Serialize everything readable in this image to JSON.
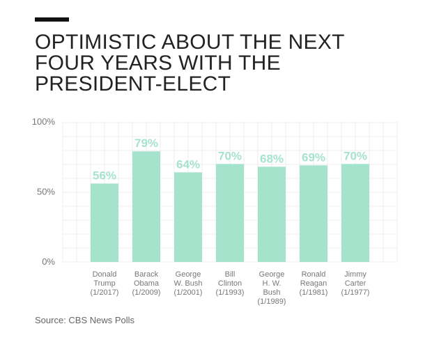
{
  "title_lines": [
    "OPTIMISTIC ABOUT THE NEXT",
    "FOUR YEARS WITH THE",
    "PRESIDENT-ELECT"
  ],
  "source": "Source: CBS News Polls",
  "colors": {
    "bar": "#a6e3cd",
    "label": "#a6e3cd",
    "grid": "#eeeeee",
    "text": "#777777"
  },
  "chart_data": {
    "type": "bar",
    "title": "OPTIMISTIC ABOUT THE NEXT FOUR YEARS WITH THE PRESIDENT-ELECT",
    "categories": [
      [
        "Donald",
        "Trump",
        "(1/2017)"
      ],
      [
        "Barack",
        "Obama",
        "(1/2009)"
      ],
      [
        "George",
        "W. Bush",
        "(1/2001)"
      ],
      [
        "Bill",
        "Clinton",
        "(1/1993)"
      ],
      [
        "George",
        "H. W.",
        "Bush",
        "(1/1989)"
      ],
      [
        "Ronald",
        "Reagan",
        "(1/1981)"
      ],
      [
        "Jimmy",
        "Carter",
        "(1/1977)"
      ]
    ],
    "values": [
      56,
      79,
      64,
      70,
      68,
      69,
      70
    ],
    "data_labels": [
      "56%",
      "79%",
      "64%",
      "70%",
      "68%",
      "69%",
      "70%"
    ],
    "yticks": [
      {
        "value": 100,
        "label": "100%"
      },
      {
        "value": 50,
        "label": "50%"
      },
      {
        "value": 0,
        "label": "0%"
      }
    ],
    "ylim": [
      0,
      100
    ],
    "grid": true,
    "legend": "none"
  }
}
